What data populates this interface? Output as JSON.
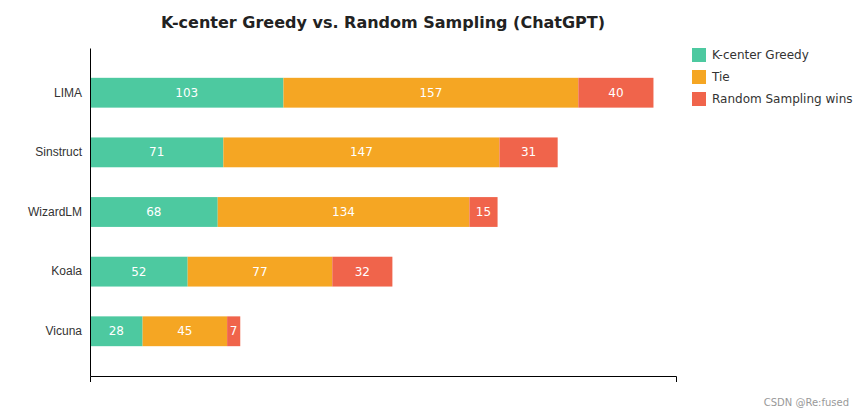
{
  "chart_data": {
    "type": "bar",
    "orientation": "horizontal",
    "stacked": true,
    "title": "K-center Greedy vs. Random Sampling (ChatGPT)",
    "categories": [
      "LIMA",
      "Sinstruct",
      "WizardLM",
      "Koala",
      "Vicuna"
    ],
    "series": [
      {
        "name": "K-center Greedy",
        "color": "#4DC9A0",
        "values": [
          103,
          71,
          68,
          52,
          28
        ]
      },
      {
        "name": "Tie",
        "color": "#F5A623",
        "values": [
          157,
          147,
          134,
          77,
          45
        ]
      },
      {
        "name": "Random Sampling wins",
        "color": "#F0644B",
        "values": [
          40,
          31,
          15,
          32,
          7
        ]
      }
    ],
    "xlim": [
      0,
      312
    ],
    "xticks": [],
    "tick_labels": "y",
    "data_labels": true,
    "grid": false,
    "legend": "upper right",
    "annotations": [
      "CSDN @Re:fused"
    ]
  }
}
